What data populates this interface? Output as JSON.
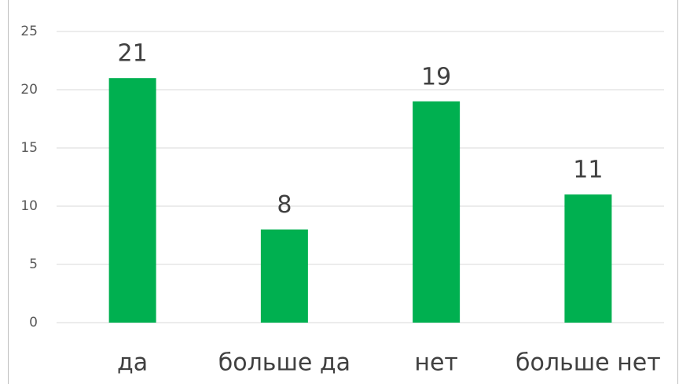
{
  "chart_data": {
    "type": "bar",
    "categories": [
      "да",
      "больше да",
      "нет",
      "больше нет"
    ],
    "values": [
      21,
      8,
      19,
      11
    ],
    "color": "#00b050",
    "ylim": [
      0,
      25
    ],
    "yticks": [
      0,
      5,
      10,
      15,
      20,
      25
    ],
    "grid": true,
    "data_labels": true
  }
}
